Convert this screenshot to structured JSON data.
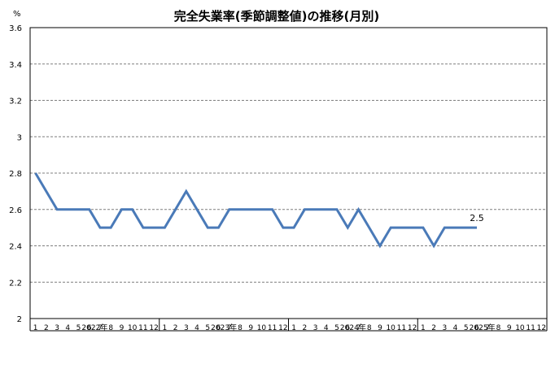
{
  "chart_data": {
    "type": "line",
    "title": "完全失業率(季節調整値)の推移(月別)",
    "ylabel": "%",
    "ylim": [
      2,
      3.6
    ],
    "yticks": [
      "2",
      "2.2",
      "2.4",
      "2.6",
      "2.8",
      "3",
      "3.2",
      "3.4",
      "3.6"
    ],
    "grid": true,
    "month_labels": [
      "1",
      "2",
      "3",
      "4",
      "5",
      "6",
      "7",
      "8",
      "9",
      "10",
      "11",
      "12"
    ],
    "years": [
      "2022年",
      "2023年",
      "2024年",
      "2025年"
    ],
    "values": [
      2.8,
      2.7,
      2.6,
      2.6,
      2.6,
      2.6,
      2.5,
      2.5,
      2.6,
      2.6,
      2.5,
      2.5,
      2.5,
      2.6,
      2.7,
      2.6,
      2.5,
      2.5,
      2.6,
      2.6,
      2.6,
      2.6,
      2.6,
      2.5,
      2.5,
      2.6,
      2.6,
      2.6,
      2.6,
      2.5,
      2.6,
      2.5,
      2.4,
      2.5,
      2.5,
      2.5,
      2.5,
      2.4,
      2.5,
      2.5,
      2.5,
      2.5
    ],
    "data_labels": [
      {
        "index": 41,
        "text": "2.5"
      }
    ],
    "line_color": "#4a7ab8"
  }
}
